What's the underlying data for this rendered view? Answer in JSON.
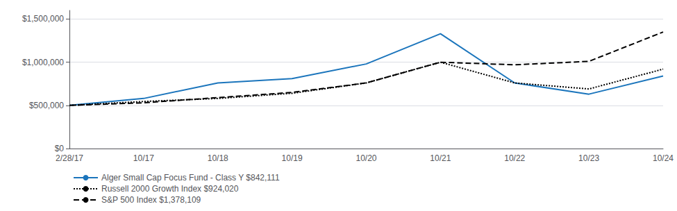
{
  "chart_data": {
    "type": "line",
    "categories": [
      "2/28/17",
      "10/17",
      "10/18",
      "10/19",
      "10/20",
      "10/21",
      "10/22",
      "10/23",
      "10/24"
    ],
    "series": [
      {
        "name": "Alger Small Cap Focus Fund - Class Y $842,111",
        "color": "#1b75bc",
        "line_style": "solid",
        "values": [
          500000,
          580000,
          760000,
          810000,
          980000,
          1330000,
          760000,
          630000,
          840000
        ]
      },
      {
        "name": "Russell 2000 Growth Index $924,020",
        "color": "#000000",
        "line_style": "dotted",
        "values": [
          500000,
          545000,
          580000,
          640000,
          760000,
          1000000,
          760000,
          690000,
          920000
        ]
      },
      {
        "name": "S&P 500 Index $1,378,109",
        "color": "#000000",
        "line_style": "dashed",
        "values": [
          500000,
          530000,
          590000,
          650000,
          760000,
          1000000,
          970000,
          1010000,
          1350000
        ]
      }
    ],
    "ylim": [
      0,
      1600000
    ],
    "yticks": [
      {
        "value": 0,
        "label": "$0"
      },
      {
        "value": 500000,
        "label": "$500,000"
      },
      {
        "value": 1000000,
        "label": "$1,000,000"
      },
      {
        "value": 1500000,
        "label": "$1,500,000"
      }
    ],
    "grid": true,
    "legend": "lower left"
  }
}
